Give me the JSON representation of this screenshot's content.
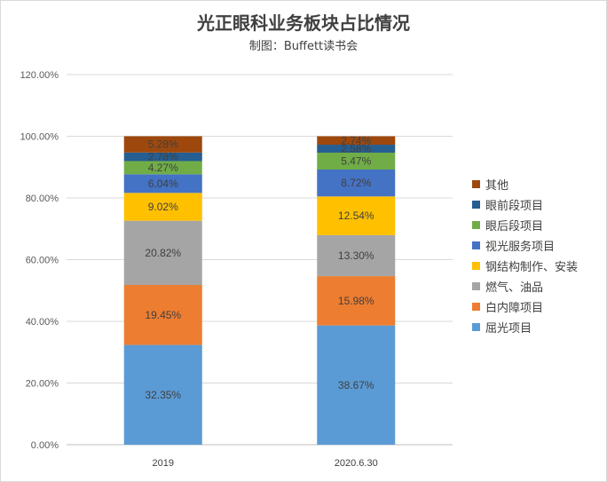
{
  "chart_data": {
    "type": "stacked-bar",
    "title": "光正眼科业务板块占比情况",
    "subtitle": "制图：Buffett读书会",
    "categories": [
      "2019",
      "2020.6.30"
    ],
    "ylim": [
      0,
      120
    ],
    "yticks": [
      "0.00%",
      "20.00%",
      "40.00%",
      "60.00%",
      "80.00%",
      "100.00%",
      "120.00%"
    ],
    "grid": true,
    "legend_position": "right",
    "series": [
      {
        "name": "屈光项目",
        "color": "#5b9bd5",
        "values": [
          32.35,
          38.67
        ],
        "labels": [
          "32.35%",
          "38.67%"
        ]
      },
      {
        "name": "白内障项目",
        "color": "#ed7d31",
        "values": [
          19.45,
          15.98
        ],
        "labels": [
          "19.45%",
          "15.98%"
        ]
      },
      {
        "name": "燃气、油品",
        "color": "#a5a5a5",
        "values": [
          20.82,
          13.3
        ],
        "labels": [
          "20.82%",
          "13.30%"
        ]
      },
      {
        "name": "钢结构制作、安装",
        "color": "#ffc000",
        "values": [
          9.02,
          12.54
        ],
        "labels": [
          "9.02%",
          "12.54%"
        ]
      },
      {
        "name": "视光服务项目",
        "color": "#4472c4",
        "values": [
          6.04,
          8.72
        ],
        "labels": [
          "6.04%",
          "8.72%"
        ]
      },
      {
        "name": "眼后段项目",
        "color": "#70ad47",
        "values": [
          4.27,
          5.47
        ],
        "labels": [
          "4.27%",
          "5.47%"
        ]
      },
      {
        "name": "眼前段项目",
        "color": "#255e91",
        "values": [
          2.78,
          2.58
        ],
        "labels": [
          "2.78%",
          "2.58%"
        ]
      },
      {
        "name": "其他",
        "color": "#9e480e",
        "values": [
          5.28,
          2.74
        ],
        "labels": [
          "5.28%",
          "2.74%"
        ]
      }
    ],
    "legend_order": [
      "其他",
      "眼前段项目",
      "眼后段项目",
      "视光服务项目",
      "钢结构制作、安装",
      "燃气、油品",
      "白内障项目",
      "屈光项目"
    ]
  }
}
